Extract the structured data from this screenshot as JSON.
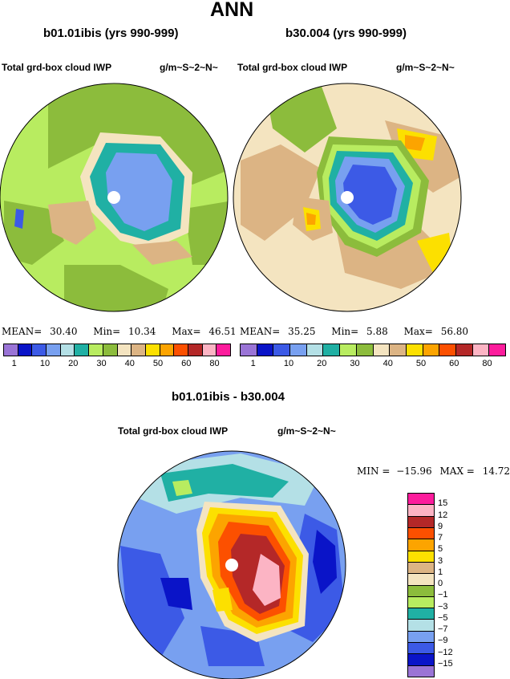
{
  "figure": {
    "title": "ANN"
  },
  "panels": [
    {
      "case": "b01.01ibis (yrs 990-999)",
      "variable": "Total grd-box cloud IWP",
      "units": "g/m~S~2~N~",
      "stats": {
        "mean_label": "MEAN=",
        "mean": "30.40",
        "min_label": "Min=",
        "min": "10.34",
        "max_label": "Max=",
        "max": "46.51"
      }
    },
    {
      "case": "b30.004 (yrs 990-999)",
      "variable": "Total grd-box cloud IWP",
      "units": "g/m~S~2~N~",
      "stats": {
        "mean_label": "MEAN=",
        "mean": "35.25",
        "min_label": "Min=",
        "min": "5.88",
        "max_label": "Max=",
        "max": "56.80"
      }
    },
    {
      "case": "b01.01ibis - b30.004",
      "variable": "Total grd-box cloud IWP",
      "units": "g/m~S~2~N~",
      "stats": {
        "min_label": "MIN =",
        "min": "−15.96",
        "max_label": "MAX =",
        "max": "14.72"
      }
    }
  ],
  "colorbar_abs": {
    "colors": [
      "#9a74d6",
      "#0a14c8",
      "#3c5ae6",
      "#78a0f0",
      "#b4e0e6",
      "#20b0a4",
      "#b8ec60",
      "#8cbc3c",
      "#f4e4c0",
      "#dcb484",
      "#fce000",
      "#fca400",
      "#fc5000",
      "#b42828",
      "#fcb4c4",
      "#fc1c9c"
    ],
    "labels": [
      "1",
      "10",
      "20",
      "30",
      "40",
      "50",
      "60",
      "80"
    ]
  },
  "colorbar_diff": {
    "colors": [
      "#fc1c9c",
      "#fcb4c4",
      "#b42828",
      "#fc5000",
      "#fca400",
      "#fce000",
      "#dcb484",
      "#f4e4c0",
      "#8cbc3c",
      "#b8ec60",
      "#20b0a4",
      "#b4e0e6",
      "#78a0f0",
      "#3c5ae6",
      "#0a14c8",
      "#9a74d6"
    ],
    "labels": [
      "15",
      "12",
      "9",
      "7",
      "5",
      "3",
      "1",
      "0",
      "−1",
      "−3",
      "−5",
      "−7",
      "−9",
      "−12",
      "−15"
    ]
  }
}
